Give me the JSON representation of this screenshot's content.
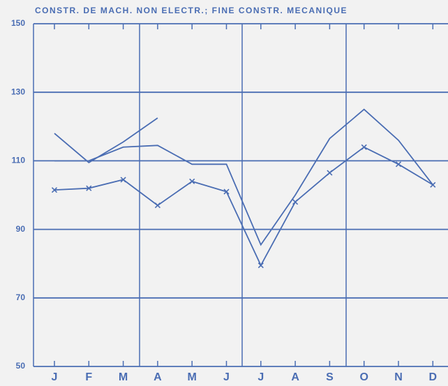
{
  "chart_data": {
    "type": "line",
    "title": "CONSTR. DE MACH. NON ELECTR.; FINE CONSTR. MECANIQUE",
    "categories": [
      "J",
      "F",
      "M",
      "A",
      "M",
      "J",
      "J",
      "A",
      "S",
      "O",
      "N",
      "D"
    ],
    "series": [
      {
        "color": "#4a6db3",
        "marker": "x",
        "values": [
          101.5,
          102,
          104.5,
          97,
          104,
          101,
          79.5,
          98,
          106.5,
          114,
          109,
          103
        ]
      },
      {
        "color": "#4a6db3",
        "values": [
          110,
          110,
          114,
          114.5,
          109,
          109,
          85.5,
          100,
          116.5,
          125,
          116,
          103
        ]
      },
      {
        "color": "#4a6db3",
        "values": [
          118,
          109.5,
          115.5,
          122.5,
          null,
          null,
          null,
          null,
          null,
          null,
          null,
          null
        ]
      }
    ],
    "ylim": [
      50,
      150
    ],
    "yticks": [
      50,
      70,
      90,
      110,
      130,
      150
    ],
    "grid": true
  }
}
